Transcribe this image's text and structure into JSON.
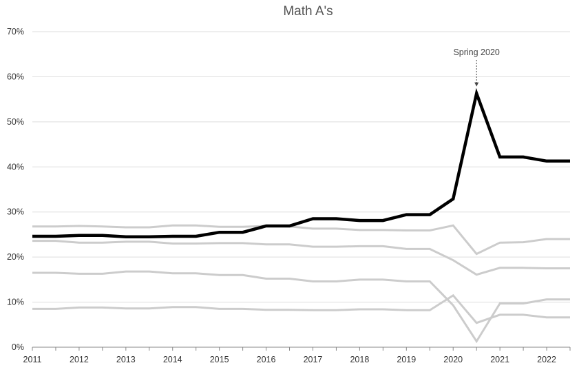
{
  "chart_data": {
    "type": "line",
    "title": "Math A's",
    "xlabel": "",
    "ylabel": "",
    "ylim": [
      0,
      70
    ],
    "y_ticks": [
      "0%",
      "10%",
      "20%",
      "30%",
      "40%",
      "50%",
      "60%",
      "70%"
    ],
    "y_tick_values": [
      0,
      10,
      20,
      30,
      40,
      50,
      60,
      70
    ],
    "x_ticks": [
      "2011",
      "2012",
      "2013",
      "2014",
      "2015",
      "2016",
      "2017",
      "2018",
      "2019",
      "2020",
      "2021",
      "2022"
    ],
    "x_tick_values": [
      2011,
      2012,
      2013,
      2014,
      2015,
      2016,
      2017,
      2018,
      2019,
      2020,
      2021,
      2022
    ],
    "xlim": [
      2011,
      2022.5
    ],
    "grid": true,
    "legend": "none",
    "annotation": {
      "text": "Spring 2020",
      "x": 2020.5,
      "y": 56.3
    },
    "x": [
      2011,
      2011.5,
      2012,
      2012.5,
      2013,
      2013.5,
      2014,
      2014.5,
      2015,
      2015.5,
      2016,
      2016.5,
      2017,
      2017.5,
      2018,
      2018.5,
      2019,
      2019.5,
      2020,
      2020.5,
      2021,
      2021.5,
      2022,
      2022.5
    ],
    "series": [
      {
        "color": "#cccccc",
        "width": 3,
        "values": [
          26.8,
          26.8,
          26.9,
          26.8,
          26.6,
          26.6,
          27.0,
          27.0,
          26.7,
          26.7,
          26.9,
          26.8,
          26.3,
          26.3,
          26.0,
          26.0,
          25.9,
          25.9,
          27.0,
          20.7,
          23.2,
          23.3,
          24.0,
          24.0
        ]
      },
      {
        "color": "#cccccc",
        "width": 3,
        "values": [
          23.6,
          23.6,
          23.2,
          23.2,
          23.4,
          23.4,
          23.0,
          23.0,
          23.1,
          23.1,
          22.8,
          22.8,
          22.3,
          22.3,
          22.4,
          22.4,
          21.8,
          21.8,
          19.3,
          16.1,
          17.6,
          17.6,
          17.5,
          17.5
        ]
      },
      {
        "color": "#cccccc",
        "width": 3,
        "values": [
          16.5,
          16.5,
          16.3,
          16.3,
          16.8,
          16.8,
          16.4,
          16.4,
          16.0,
          16.0,
          15.2,
          15.2,
          14.6,
          14.6,
          15.0,
          15.0,
          14.6,
          14.6,
          9.3,
          1.3,
          9.7,
          9.7,
          10.6,
          10.6
        ]
      },
      {
        "color": "#cccccc",
        "width": 3,
        "values": [
          8.5,
          8.5,
          8.8,
          8.8,
          8.6,
          8.6,
          8.9,
          8.9,
          8.5,
          8.5,
          8.3,
          8.3,
          8.2,
          8.2,
          8.4,
          8.4,
          8.2,
          8.2,
          11.5,
          5.4,
          7.2,
          7.2,
          6.6,
          6.6
        ]
      },
      {
        "color": "#000000",
        "width": 4.5,
        "values": [
          24.6,
          24.6,
          24.8,
          24.8,
          24.5,
          24.5,
          24.6,
          24.6,
          25.5,
          25.5,
          26.9,
          26.9,
          28.5,
          28.5,
          28.1,
          28.1,
          29.4,
          29.4,
          32.9,
          56.3,
          42.2,
          42.2,
          41.3,
          41.3
        ]
      }
    ]
  }
}
